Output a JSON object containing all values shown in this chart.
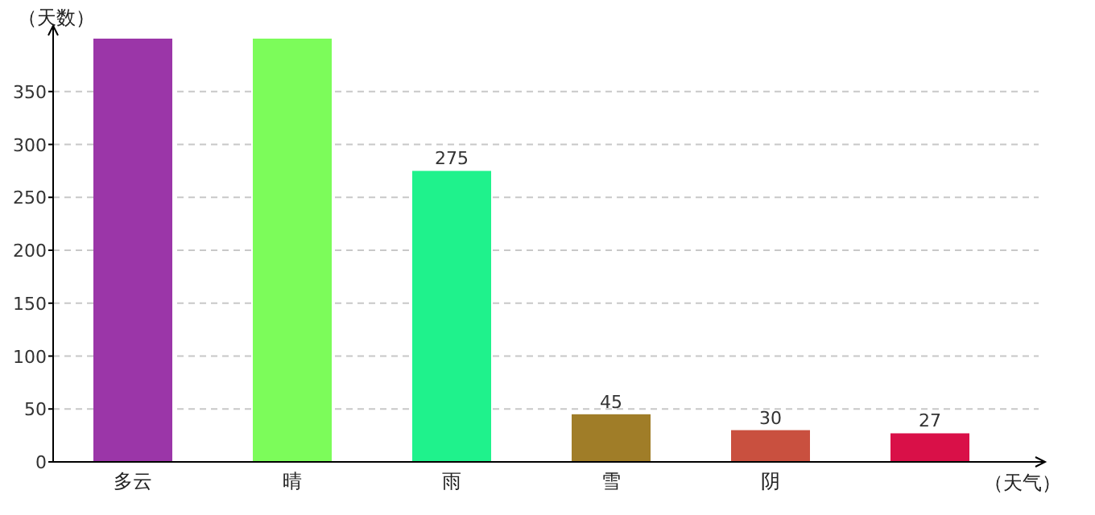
{
  "chart_data": {
    "type": "bar",
    "xlabel": "（天气）",
    "ylabel": "（天数）",
    "categories": [
      "多云",
      "晴",
      "雨",
      "雪",
      "阴",
      null
    ],
    "values": [
      400,
      400,
      275,
      45,
      30,
      27
    ],
    "colors": [
      "#9b36a8",
      "#7cfc5a",
      "#1ff28c",
      "#a07d28",
      "#c9503f",
      "#d91048"
    ],
    "value_labels": [
      null,
      null,
      "275",
      "45",
      "30",
      "27"
    ],
    "ylim": [
      0,
      400
    ],
    "yticks": [
      0,
      50,
      100,
      150,
      200,
      250,
      300,
      350
    ],
    "grid": "y"
  }
}
